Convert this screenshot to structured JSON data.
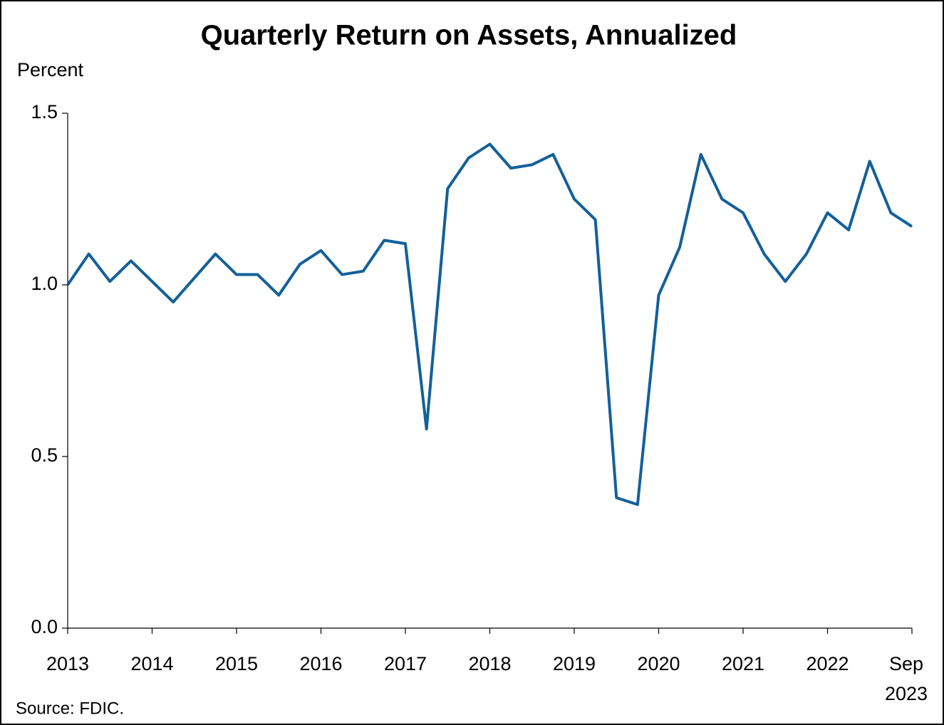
{
  "chart_data": {
    "type": "line",
    "title": "Quarterly Return on Assets, Annualized",
    "y_label": "Percent",
    "source": "Source: FDIC.",
    "categories": [
      "2013",
      null,
      null,
      null,
      "2014",
      null,
      null,
      null,
      "2015",
      null,
      null,
      null,
      "2016",
      null,
      null,
      null,
      "2017",
      null,
      null,
      null,
      "2018",
      null,
      null,
      null,
      "2019",
      null,
      null,
      null,
      "2020",
      null,
      null,
      null,
      "2021",
      null,
      null,
      null,
      "2022",
      null,
      null,
      null,
      "Sep 2023"
    ],
    "series": [
      {
        "name": "Return on Assets",
        "color": "#13609a",
        "values": [
          1.0,
          1.09,
          1.01,
          1.07,
          1.01,
          0.95,
          1.02,
          1.09,
          1.03,
          1.03,
          0.97,
          1.06,
          1.1,
          1.03,
          1.04,
          1.13,
          1.12,
          0.58,
          1.28,
          1.37,
          1.41,
          1.34,
          1.35,
          1.38,
          1.25,
          1.19,
          0.38,
          0.36,
          0.97,
          1.11,
          1.38,
          1.25,
          1.21,
          1.09,
          1.01,
          1.09,
          1.21,
          1.16,
          1.36,
          1.21,
          1.17
        ]
      }
    ],
    "ylim": [
      0,
      1.5
    ],
    "yticks": [
      {
        "value": 0,
        "label": "0.0"
      },
      0.5,
      {
        "value": 1,
        "label": "1.0"
      },
      1.5
    ]
  }
}
